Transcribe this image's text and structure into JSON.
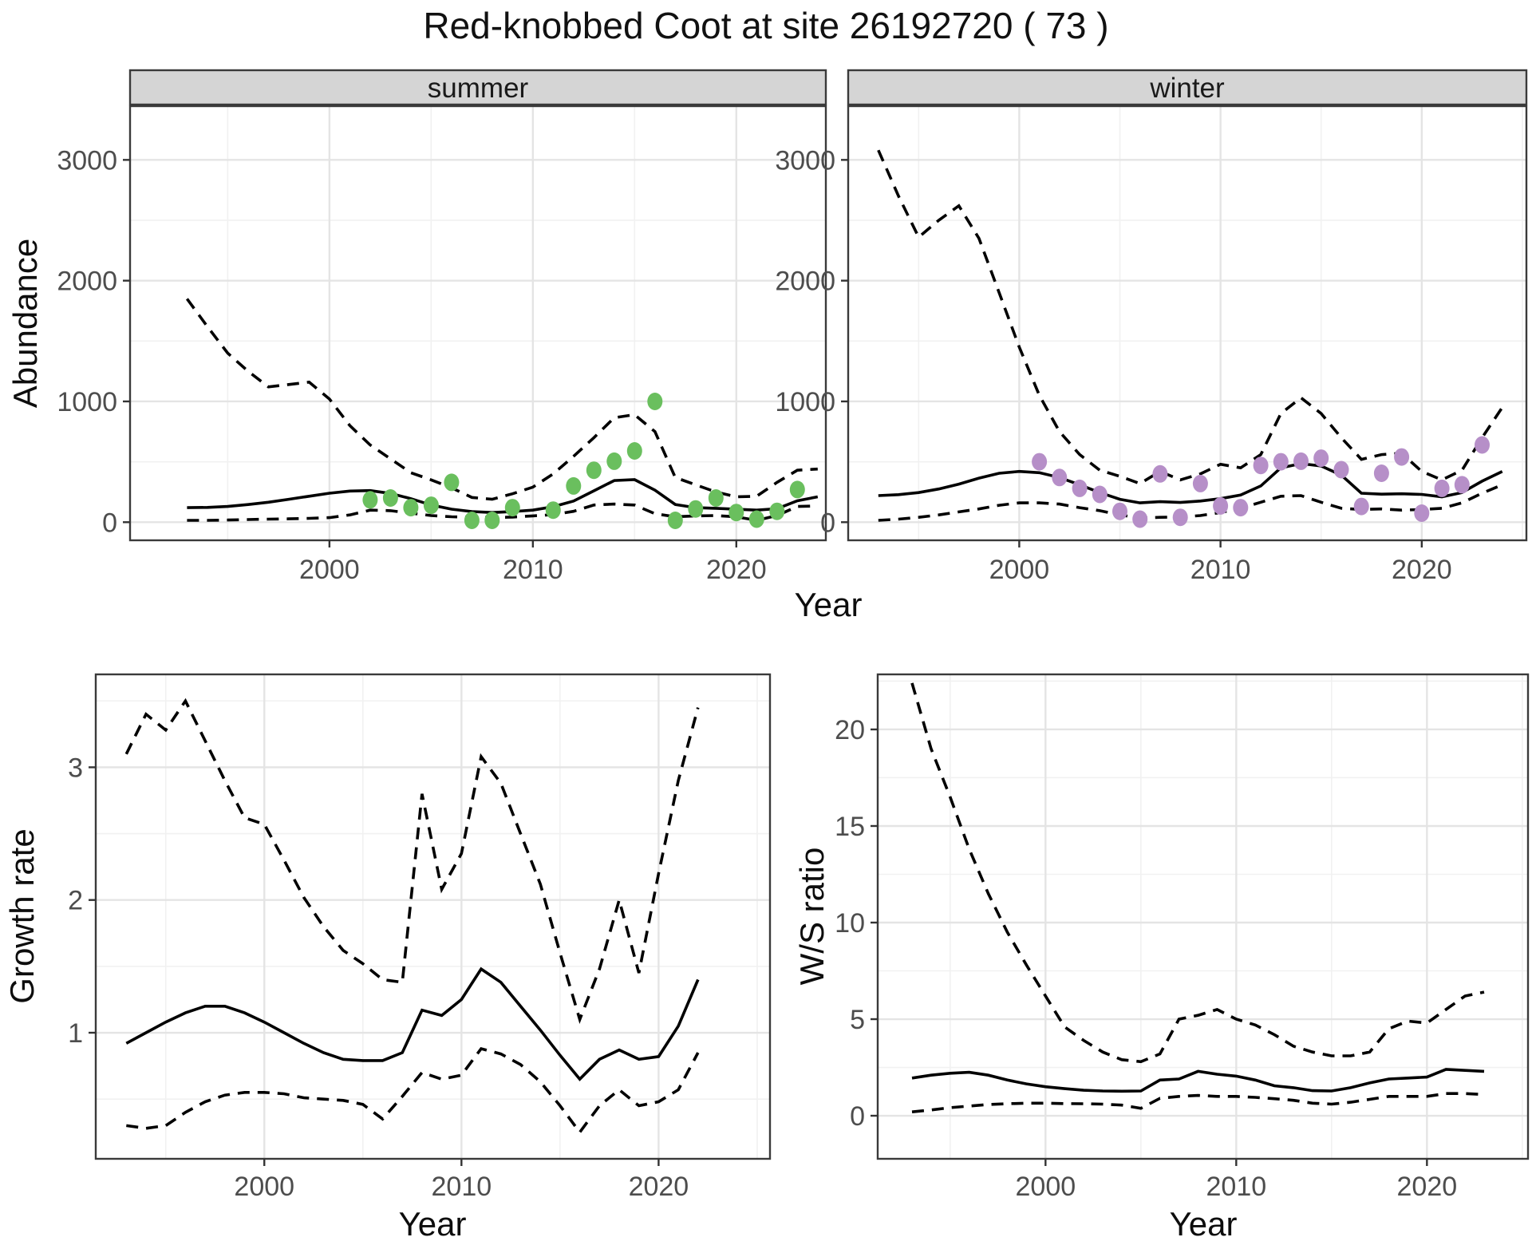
{
  "title": "Red-knobbed Coot at site 26192720 ( 73 )",
  "facets": {
    "summer": "summer",
    "winter": "winter"
  },
  "axis_titles": {
    "abundance": "Abundance",
    "year_top": "Year",
    "growth": "Growth rate",
    "ws": "W/S ratio",
    "year_growth": "Year",
    "year_ws": "Year"
  },
  "colors": {
    "summer_points": "#6ABF5E",
    "winter_points": "#B68FC8",
    "line": "#000000",
    "strip_fill": "#D5D5D5",
    "panel_border": "#3A3A3A",
    "grid_major": "#E4E4E4",
    "grid_minor": "#F1F1F1",
    "tick_mark": "#333333",
    "tick_label": "#4D4D4D"
  },
  "chart_data": [
    {
      "id": "abundance_summer",
      "type": "line",
      "facet_label": "summer",
      "xlabel": "Year",
      "ylabel": "Abundance",
      "xlim": [
        1990.2,
        2024.4
      ],
      "ylim": [
        -150,
        3445
      ],
      "x_major": [
        2000,
        2010,
        2020
      ],
      "x_minor": [
        1995,
        2005,
        2015,
        2025
      ],
      "y_major": [
        0,
        1000,
        2000,
        3000
      ],
      "y_minor": [
        500,
        1500,
        2500
      ],
      "grid": true,
      "legend": "none",
      "fit": {
        "x": [
          1993,
          1994,
          1995,
          1996,
          1997,
          1998,
          1999,
          2000,
          2001,
          2002,
          2003,
          2004,
          2005,
          2006,
          2007,
          2008,
          2009,
          2010,
          2011,
          2012,
          2013,
          2014,
          2015,
          2016,
          2017,
          2018,
          2019,
          2020,
          2021,
          2022,
          2023,
          2024
        ],
        "y": [
          120,
          122,
          130,
          146,
          165,
          190,
          215,
          240,
          258,
          262,
          238,
          195,
          142,
          108,
          88,
          80,
          88,
          100,
          128,
          175,
          260,
          345,
          352,
          265,
          147,
          120,
          115,
          107,
          100,
          112,
          177,
          210
        ]
      },
      "upper": {
        "x": [
          1993,
          1994,
          1995,
          1996,
          1997,
          1998,
          1999,
          2000,
          2001,
          2002,
          2003,
          2004,
          2005,
          2006,
          2007,
          2008,
          2009,
          2010,
          2011,
          2012,
          2013,
          2014,
          2015,
          2016,
          2017,
          2018,
          2019,
          2020,
          2021,
          2022,
          2023,
          2024
        ],
        "y": [
          1850,
          1620,
          1400,
          1250,
          1120,
          1140,
          1160,
          1020,
          800,
          640,
          525,
          410,
          350,
          285,
          205,
          190,
          235,
          290,
          400,
          545,
          700,
          865,
          890,
          750,
          370,
          310,
          250,
          210,
          215,
          330,
          430,
          440
        ]
      },
      "lower": {
        "x": [
          1993,
          1994,
          1995,
          1996,
          1997,
          1998,
          1999,
          2000,
          2001,
          2002,
          2003,
          2004,
          2005,
          2006,
          2007,
          2008,
          2009,
          2010,
          2011,
          2012,
          2013,
          2014,
          2015,
          2016,
          2017,
          2018,
          2019,
          2020,
          2021,
          2022,
          2023,
          2024
        ],
        "y": [
          15,
          15,
          18,
          22,
          25,
          28,
          32,
          38,
          60,
          100,
          95,
          75,
          55,
          45,
          40,
          38,
          42,
          52,
          62,
          90,
          142,
          150,
          142,
          70,
          45,
          52,
          55,
          44,
          15,
          55,
          130,
          135
        ]
      },
      "points": {
        "color_key": "summer_points",
        "x": [
          2002,
          2003,
          2004,
          2005,
          2006,
          2007,
          2008,
          2009,
          2011,
          2012,
          2013,
          2014,
          2015,
          2016,
          2017,
          2018,
          2019,
          2020,
          2021,
          2022,
          2023
        ],
        "y": [
          185,
          200,
          120,
          140,
          330,
          15,
          15,
          120,
          100,
          300,
          430,
          505,
          590,
          1000,
          15,
          110,
          200,
          80,
          25,
          90,
          270
        ]
      }
    },
    {
      "id": "abundance_winter",
      "type": "line",
      "facet_label": "winter",
      "xlabel": "Year",
      "ylabel": "Abundance",
      "xlim": [
        1991.5,
        2025.2
      ],
      "ylim": [
        -150,
        3445
      ],
      "x_major": [
        2000,
        2010,
        2020
      ],
      "x_minor": [
        1995,
        2005,
        2015,
        2025
      ],
      "y_major": [
        0,
        1000,
        2000,
        3000
      ],
      "y_minor": [
        500,
        1500,
        2500
      ],
      "grid": true,
      "legend": "none",
      "fit": {
        "x": [
          1993,
          1994,
          1995,
          1996,
          1997,
          1998,
          1999,
          2000,
          2001,
          2002,
          2003,
          2004,
          2005,
          2006,
          2007,
          2008,
          2009,
          2010,
          2011,
          2012,
          2013,
          2014,
          2015,
          2016,
          2017,
          2018,
          2019,
          2020,
          2021,
          2022,
          2023,
          2024
        ],
        "y": [
          220,
          228,
          245,
          275,
          315,
          365,
          405,
          420,
          410,
          370,
          310,
          245,
          190,
          160,
          170,
          163,
          175,
          195,
          225,
          300,
          450,
          485,
          465,
          390,
          240,
          232,
          235,
          230,
          210,
          245,
          340,
          420
        ]
      },
      "upper": {
        "x": [
          1993,
          1994,
          1995,
          1996,
          1997,
          1998,
          1999,
          2000,
          2001,
          2002,
          2003,
          2004,
          2005,
          2006,
          2007,
          2008,
          2009,
          2010,
          2011,
          2012,
          2013,
          2014,
          2015,
          2016,
          2017,
          2018,
          2019,
          2020,
          2021,
          2022,
          2023,
          2024
        ],
        "y": [
          3080,
          2700,
          2360,
          2500,
          2620,
          2350,
          1900,
          1450,
          1050,
          750,
          560,
          430,
          380,
          320,
          420,
          350,
          400,
          480,
          450,
          560,
          900,
          1030,
          900,
          700,
          520,
          560,
          570,
          420,
          350,
          430,
          700,
          950
        ]
      },
      "lower": {
        "x": [
          1993,
          1994,
          1995,
          1996,
          1997,
          1998,
          1999,
          2000,
          2001,
          2002,
          2003,
          2004,
          2005,
          2006,
          2007,
          2008,
          2009,
          2010,
          2011,
          2012,
          2013,
          2014,
          2015,
          2016,
          2017,
          2018,
          2019,
          2020,
          2021,
          2022,
          2023,
          2024
        ],
        "y": [
          15,
          25,
          40,
          60,
          85,
          110,
          140,
          160,
          160,
          150,
          120,
          95,
          60,
          35,
          40,
          42,
          55,
          80,
          115,
          165,
          215,
          220,
          165,
          115,
          105,
          110,
          100,
          105,
          115,
          160,
          240,
          310
        ]
      },
      "points": {
        "color_key": "winter_points",
        "x": [
          2001,
          2002,
          2003,
          2004,
          2005,
          2006,
          2007,
          2008,
          2009,
          2010,
          2011,
          2012,
          2013,
          2014,
          2015,
          2016,
          2017,
          2018,
          2019,
          2020,
          2021,
          2022,
          2023
        ],
        "y": [
          500,
          370,
          280,
          230,
          90,
          25,
          400,
          40,
          320,
          135,
          120,
          470,
          500,
          505,
          530,
          435,
          130,
          405,
          540,
          75,
          280,
          310,
          640
        ]
      }
    },
    {
      "id": "growth_rate",
      "type": "line",
      "facet_label": null,
      "xlabel": "Year",
      "ylabel": "Growth rate",
      "xlim": [
        1991.45,
        2025.65
      ],
      "ylim": [
        0.05,
        3.7
      ],
      "x_major": [
        2000,
        2010,
        2020
      ],
      "x_minor": [
        1995,
        2005,
        2015,
        2025
      ],
      "y_major": [
        1,
        2,
        3
      ],
      "y_minor": [
        0.5,
        1.5,
        2.5,
        3.5
      ],
      "grid": true,
      "legend": "none",
      "fit": {
        "x": [
          1993,
          1994,
          1995,
          1996,
          1997,
          1998,
          1999,
          2000,
          2001,
          2002,
          2003,
          2004,
          2005,
          2006,
          2007,
          2008,
          2009,
          2010,
          2011,
          2012,
          2013,
          2014,
          2015,
          2016,
          2017,
          2018,
          2019,
          2020,
          2021,
          2022
        ],
        "y": [
          0.92,
          1.0,
          1.08,
          1.15,
          1.2,
          1.2,
          1.15,
          1.08,
          1.0,
          0.92,
          0.85,
          0.8,
          0.79,
          0.79,
          0.85,
          1.17,
          1.13,
          1.25,
          1.48,
          1.38,
          1.2,
          1.02,
          0.83,
          0.65,
          0.8,
          0.87,
          0.8,
          0.82,
          1.05,
          1.4
        ]
      },
      "upper": {
        "x": [
          1993,
          1994,
          1995,
          1996,
          1997,
          1998,
          1999,
          2000,
          2001,
          2002,
          2003,
          2004,
          2005,
          2006,
          2007,
          2008,
          2009,
          2010,
          2011,
          2012,
          2013,
          2014,
          2015,
          2016,
          2017,
          2018,
          2019,
          2020,
          2021,
          2022
        ],
        "y": [
          3.1,
          3.4,
          3.28,
          3.5,
          3.2,
          2.9,
          2.62,
          2.57,
          2.3,
          2.02,
          1.8,
          1.62,
          1.52,
          1.4,
          1.38,
          2.8,
          2.08,
          2.35,
          3.08,
          2.88,
          2.5,
          2.12,
          1.6,
          1.1,
          1.48,
          2.0,
          1.45,
          2.2,
          2.9,
          3.45
        ]
      },
      "lower": {
        "x": [
          1993,
          1994,
          1995,
          1996,
          1997,
          1998,
          1999,
          2000,
          2001,
          2002,
          2003,
          2004,
          2005,
          2006,
          2007,
          2008,
          2009,
          2010,
          2011,
          2012,
          2013,
          2014,
          2015,
          2016,
          2017,
          2018,
          2019,
          2020,
          2021,
          2022
        ],
        "y": [
          0.3,
          0.28,
          0.3,
          0.4,
          0.48,
          0.53,
          0.55,
          0.55,
          0.54,
          0.51,
          0.5,
          0.49,
          0.46,
          0.35,
          0.52,
          0.7,
          0.65,
          0.68,
          0.88,
          0.84,
          0.76,
          0.63,
          0.45,
          0.25,
          0.45,
          0.57,
          0.45,
          0.48,
          0.57,
          0.85
        ]
      },
      "points": null
    },
    {
      "id": "ws_ratio",
      "type": "line",
      "facet_label": null,
      "xlabel": "Year",
      "ylabel": "W/S ratio",
      "xlim": [
        1991.2,
        2025.3
      ],
      "ylim": [
        -2.23,
        22.85
      ],
      "x_major": [
        2000,
        2010,
        2020
      ],
      "x_minor": [
        1995,
        2005,
        2015,
        2025
      ],
      "y_major": [
        0,
        5,
        10,
        15,
        20
      ],
      "y_minor": [
        2.5,
        7.5,
        12.5,
        17.5,
        22.5
      ],
      "grid": true,
      "legend": "none",
      "fit": {
        "x": [
          1993,
          1994,
          1995,
          1996,
          1997,
          1998,
          1999,
          2000,
          2001,
          2002,
          2003,
          2004,
          2005,
          2006,
          2007,
          2008,
          2009,
          2010,
          2011,
          2012,
          2013,
          2014,
          2015,
          2016,
          2017,
          2018,
          2019,
          2020,
          2021,
          2022,
          2023
        ],
        "y": [
          1.95,
          2.1,
          2.2,
          2.25,
          2.1,
          1.85,
          1.65,
          1.5,
          1.4,
          1.32,
          1.28,
          1.27,
          1.28,
          1.85,
          1.9,
          2.3,
          2.15,
          2.05,
          1.85,
          1.55,
          1.45,
          1.3,
          1.28,
          1.45,
          1.7,
          1.9,
          1.95,
          2.0,
          2.4,
          2.35,
          2.3
        ]
      },
      "upper": {
        "x": [
          1993,
          1994,
          1995,
          1996,
          1997,
          1998,
          1999,
          2000,
          2001,
          2002,
          2003,
          2004,
          2005,
          2006,
          2007,
          2008,
          2009,
          2010,
          2011,
          2012,
          2013,
          2014,
          2015,
          2016,
          2017,
          2018,
          2019,
          2020,
          2021,
          2022,
          2023
        ],
        "y": [
          22.4,
          19.0,
          16.5,
          13.8,
          11.5,
          9.5,
          7.8,
          6.2,
          4.6,
          3.9,
          3.3,
          2.9,
          2.8,
          3.2,
          5.0,
          5.2,
          5.5,
          5.0,
          4.7,
          4.2,
          3.6,
          3.3,
          3.1,
          3.1,
          3.3,
          4.5,
          4.9,
          4.8,
          5.5,
          6.2,
          6.4
        ]
      },
      "lower": {
        "x": [
          1993,
          1994,
          1995,
          1996,
          1997,
          1998,
          1999,
          2000,
          2001,
          2002,
          2003,
          2004,
          2005,
          2006,
          2007,
          2008,
          2009,
          2010,
          2011,
          2012,
          2013,
          2014,
          2015,
          2016,
          2017,
          2018,
          2019,
          2020,
          2021,
          2022,
          2023
        ],
        "y": [
          0.2,
          0.3,
          0.42,
          0.5,
          0.58,
          0.62,
          0.65,
          0.65,
          0.63,
          0.62,
          0.6,
          0.55,
          0.38,
          0.9,
          1.0,
          1.05,
          1.0,
          1.0,
          0.95,
          0.88,
          0.8,
          0.65,
          0.6,
          0.7,
          0.85,
          1.0,
          1.0,
          1.0,
          1.15,
          1.15,
          1.1
        ]
      },
      "points": null
    }
  ]
}
